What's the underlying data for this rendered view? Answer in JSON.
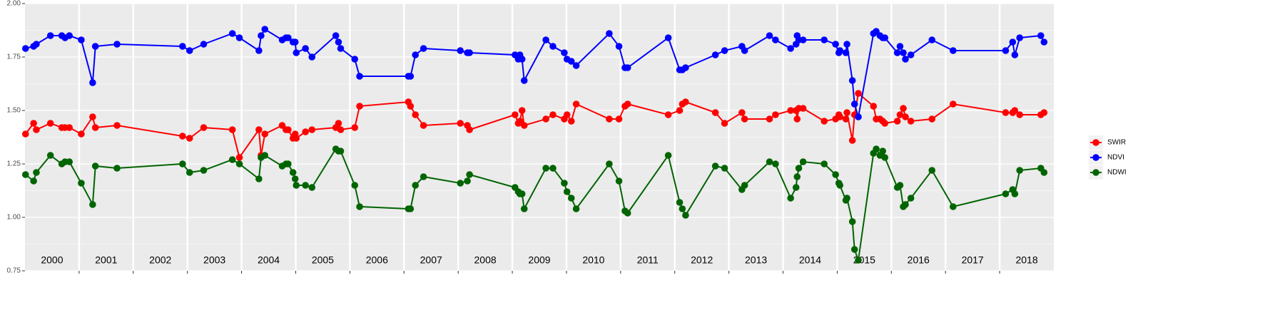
{
  "chart_data": {
    "type": "line",
    "x": [
      2000.01,
      2000.16,
      2000.21,
      2000.47,
      2000.68,
      2000.74,
      2000.82,
      2001.04,
      2001.25,
      2001.3,
      2001.7,
      2002.91,
      2003.04,
      2003.3,
      2003.83,
      2003.96,
      2004.32,
      2004.36,
      2004.43,
      2004.75,
      2004.82,
      2004.86,
      2004.95,
      2004.99,
      2005.01,
      2005.18,
      2005.3,
      2005.74,
      2005.79,
      2005.83,
      2006.09,
      2006.18,
      2007.08,
      2007.12,
      2007.21,
      2007.36,
      2008.04,
      2008.17,
      2008.21,
      2009.05,
      2009.11,
      2009.14,
      2009.18,
      2009.22,
      2009.62,
      2009.75,
      2009.96,
      2010.01,
      2010.09,
      2010.18,
      2010.79,
      2010.97,
      2011.08,
      2011.13,
      2011.88,
      2012.09,
      2012.14,
      2012.2,
      2012.75,
      2012.92,
      2013.24,
      2013.29,
      2013.75,
      2013.86,
      2014.14,
      2014.24,
      2014.26,
      2014.29,
      2014.37,
      2014.76,
      2014.97,
      2015.03,
      2015.05,
      2015.16,
      2015.18,
      2015.28,
      2015.32,
      2015.39,
      2015.67,
      2015.72,
      2015.79,
      2015.84,
      2015.88,
      2016.11,
      2016.16,
      2016.22,
      2016.26,
      2016.36,
      2016.75,
      2017.14,
      2018.11,
      2018.24,
      2018.28,
      2018.37,
      2018.76,
      2018.82
    ],
    "series": [
      {
        "name": "SWIR",
        "color": "#ff0000",
        "values": [
          1.39,
          1.44,
          1.41,
          1.44,
          1.42,
          1.42,
          1.42,
          1.39,
          1.47,
          1.42,
          1.43,
          1.38,
          1.37,
          1.42,
          1.41,
          1.28,
          1.41,
          1.29,
          1.39,
          1.43,
          1.41,
          1.41,
          1.37,
          1.39,
          1.37,
          1.4,
          1.41,
          1.42,
          1.44,
          1.41,
          1.42,
          1.52,
          1.54,
          1.52,
          1.48,
          1.43,
          1.44,
          1.43,
          1.41,
          1.48,
          1.44,
          1.45,
          1.5,
          1.43,
          1.46,
          1.48,
          1.46,
          1.48,
          1.45,
          1.53,
          1.46,
          1.46,
          1.52,
          1.53,
          1.48,
          1.5,
          1.53,
          1.54,
          1.49,
          1.44,
          1.49,
          1.46,
          1.46,
          1.48,
          1.5,
          1.5,
          1.46,
          1.51,
          1.51,
          1.45,
          1.46,
          1.48,
          1.47,
          1.46,
          1.49,
          1.36,
          1.48,
          1.58,
          1.52,
          1.46,
          1.46,
          1.45,
          1.44,
          1.45,
          1.48,
          1.51,
          1.47,
          1.45,
          1.46,
          1.53,
          1.49,
          1.49,
          1.5,
          1.48,
          1.48,
          1.49
        ]
      },
      {
        "name": "NDVI",
        "color": "#0000ff",
        "values": [
          1.79,
          1.8,
          1.81,
          1.85,
          1.85,
          1.84,
          1.85,
          1.83,
          1.63,
          1.8,
          1.81,
          1.8,
          1.78,
          1.81,
          1.86,
          1.84,
          1.78,
          1.85,
          1.88,
          1.83,
          1.84,
          1.84,
          1.82,
          1.82,
          1.77,
          1.79,
          1.75,
          1.85,
          1.82,
          1.79,
          1.74,
          1.66,
          1.66,
          1.66,
          1.76,
          1.79,
          1.78,
          1.77,
          1.77,
          1.76,
          1.74,
          1.76,
          1.74,
          1.64,
          1.83,
          1.8,
          1.77,
          1.74,
          1.73,
          1.71,
          1.86,
          1.8,
          1.7,
          1.7,
          1.84,
          1.69,
          1.69,
          1.7,
          1.76,
          1.78,
          1.8,
          1.78,
          1.85,
          1.83,
          1.79,
          1.81,
          1.85,
          1.83,
          1.83,
          1.83,
          1.81,
          1.77,
          1.78,
          1.77,
          1.81,
          1.64,
          1.53,
          1.47,
          1.86,
          1.87,
          1.85,
          1.84,
          1.84,
          1.77,
          1.8,
          1.77,
          1.74,
          1.76,
          1.83,
          1.78,
          1.78,
          1.82,
          1.76,
          1.84,
          1.85,
          1.82
        ]
      },
      {
        "name": "NDWI",
        "color": "#006400",
        "values": [
          1.2,
          1.17,
          1.21,
          1.29,
          1.25,
          1.26,
          1.26,
          1.16,
          1.06,
          1.24,
          1.23,
          1.25,
          1.21,
          1.22,
          1.27,
          1.25,
          1.18,
          1.28,
          1.29,
          1.24,
          1.25,
          1.25,
          1.21,
          1.18,
          1.15,
          1.15,
          1.14,
          1.32,
          1.31,
          1.31,
          1.15,
          1.05,
          1.04,
          1.04,
          1.15,
          1.19,
          1.16,
          1.17,
          1.2,
          1.14,
          1.12,
          1.11,
          1.11,
          1.04,
          1.23,
          1.23,
          1.16,
          1.12,
          1.09,
          1.04,
          1.25,
          1.17,
          1.03,
          1.02,
          1.29,
          1.07,
          1.04,
          1.01,
          1.24,
          1.23,
          1.13,
          1.15,
          1.26,
          1.25,
          1.09,
          1.14,
          1.19,
          1.23,
          1.26,
          1.25,
          1.2,
          1.16,
          1.15,
          1.08,
          1.09,
          0.98,
          0.85,
          0.8,
          1.3,
          1.32,
          1.29,
          1.31,
          1.28,
          1.14,
          1.15,
          1.05,
          1.06,
          1.09,
          1.22,
          1.05,
          1.11,
          1.13,
          1.11,
          1.22,
          1.23,
          1.21
        ]
      }
    ],
    "xlim": [
      2000,
      2019
    ],
    "xticks": [
      2001,
      2002,
      2003,
      2004,
      2005,
      2006,
      2007,
      2008,
      2009,
      2010,
      2011,
      2012,
      2013,
      2014,
      2015,
      2016,
      2017,
      2018
    ],
    "ylim": [
      0.75,
      2.0
    ],
    "yticks": [
      0.75,
      {
        "value": 1.0,
        "label": "1.00"
      },
      1.25,
      {
        "value": 1.5,
        "label": "1.50"
      },
      1.75,
      {
        "value": 2.0,
        "label": "2.00"
      }
    ],
    "year_labels": [
      "2000",
      "2001",
      "2002",
      "2003",
      "2004",
      "2005",
      "2006",
      "2007",
      "2008",
      "2009",
      "2010",
      "2011",
      "2012",
      "2013",
      "2014",
      "2015",
      "2016",
      "2017",
      "2018"
    ],
    "grid": true,
    "legend": "right"
  }
}
